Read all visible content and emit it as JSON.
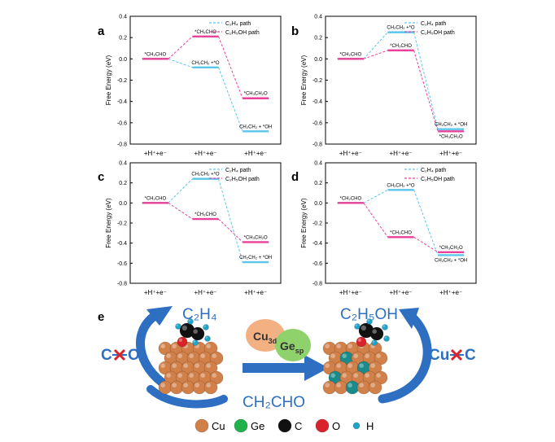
{
  "figure": {
    "panel_e_label": "e",
    "colors": {
      "c2h4_path": "#5bc5ec",
      "c2h5oh_path": "#e8429a",
      "arrow_blue": "#2e6fc1",
      "cross_red": "#d8232a",
      "cu": "#d2804a",
      "ge": "#21b24b",
      "c": "#111111",
      "o": "#d8232a",
      "h": "#1fa3c9"
    },
    "panel_e": {
      "left_product": "C₂H₄",
      "right_product": "C₂H₅OH",
      "intermediate": "CH₂CHO",
      "left_bond_a": "C",
      "left_bond_b": "O",
      "right_bond_a": "Cu",
      "right_bond_b": "C",
      "cu_orbital_main": "Cu",
      "cu_orbital_sub": "3d",
      "ge_orbital_main": "Ge",
      "ge_orbital_sub": "sp",
      "legend": [
        {
          "label": "Cu",
          "color": "#d2804a"
        },
        {
          "label": "Ge",
          "color": "#21b24b"
        },
        {
          "label": "C",
          "color": "#111111"
        },
        {
          "label": "O",
          "color": "#d8232a"
        },
        {
          "label": "H",
          "color": "#1fa3c9"
        }
      ]
    }
  },
  "chart_data": [
    {
      "type": "line",
      "panel": "a",
      "ylabel": "Free Energy (eV)",
      "ylim": [
        -0.8,
        0.4
      ],
      "yticks": [
        "0.4",
        "0.2",
        "0.0",
        "-0.2",
        "-0.4",
        "-0.6",
        "-0.8"
      ],
      "categories": [
        "+H⁺+e⁻",
        "+H⁺+e⁻",
        "+H⁺+e⁻"
      ],
      "legend": [
        "C₂H₄ path",
        "C₂H₅OH path"
      ],
      "series": [
        {
          "name": "C₂H₄ path",
          "values": [
            0.0,
            -0.08,
            -0.68
          ],
          "labels": [
            "*CH₂CHO",
            "CH₂CH₂ +*O",
            "CH₂CH₂ + *OH"
          ]
        },
        {
          "name": "C₂H₅OH path",
          "values": [
            0.0,
            0.21,
            -0.37
          ],
          "labels": [
            "*CH₂CHO",
            "*CH₃CHO",
            "*CH₃CH₂O"
          ]
        }
      ]
    },
    {
      "type": "line",
      "panel": "b",
      "ylabel": "Free Energy (eV)",
      "ylim": [
        -0.8,
        0.4
      ],
      "yticks": [
        "0.4",
        "0.2",
        "0.0",
        "-0.2",
        "-0.4",
        "-0.6",
        "-0.8"
      ],
      "categories": [
        "+H⁺+e⁻",
        "+H⁺+e⁻",
        "+H⁺+e⁻"
      ],
      "legend": [
        "C₂H₄ path",
        "C₂H₅OH path"
      ],
      "series": [
        {
          "name": "C₂H₄ path",
          "values": [
            0.0,
            0.25,
            -0.66
          ],
          "labels": [
            "*CH₂CHO",
            "CH₂CH₂ +*O",
            "CH₂CH₂ + *OH"
          ]
        },
        {
          "name": "C₂H₅OH path",
          "values": [
            0.0,
            0.08,
            -0.68
          ],
          "labels": [
            "*CH₂CHO",
            "*CH₃CHO",
            "*CH₃CH₂O"
          ]
        }
      ]
    },
    {
      "type": "line",
      "panel": "c",
      "ylabel": "Free Energy (eV)",
      "ylim": [
        -0.8,
        0.4
      ],
      "yticks": [
        "0.4",
        "0.2",
        "0.0",
        "-0.2",
        "-0.4",
        "-0.6",
        "-0.8"
      ],
      "categories": [
        "+H⁺+e⁻",
        "+H⁺+e⁻",
        "+H⁺+e⁻"
      ],
      "legend": [
        "C₂H₄ path",
        "C₂H₅OH path"
      ],
      "series": [
        {
          "name": "C₂H₄ path",
          "values": [
            0.0,
            0.24,
            -0.59
          ],
          "labels": [
            "*CH₂CHO",
            "CH₂CH₂ +*O",
            "CH₂CH₂ + *OH"
          ]
        },
        {
          "name": "C₂H₅OH path",
          "values": [
            0.0,
            -0.16,
            -0.39
          ],
          "labels": [
            "*CH₂CHO",
            "*CH₃CHO",
            "*CH₃CH₂O"
          ]
        }
      ]
    },
    {
      "type": "line",
      "panel": "d",
      "ylabel": "Free Energy (eV)",
      "ylim": [
        -0.8,
        0.4
      ],
      "yticks": [
        "0.4",
        "0.2",
        "0.0",
        "-0.2",
        "-0.4",
        "-0.6",
        "-0.8"
      ],
      "categories": [
        "+H⁺+e⁻",
        "+H⁺+e⁻",
        "+H⁺+e⁻"
      ],
      "legend": [
        "C₂H₄ path",
        "C₂H₅OH path"
      ],
      "series": [
        {
          "name": "C₂H₄ path",
          "values": [
            0.0,
            0.13,
            -0.52
          ],
          "labels": [
            "*CH₂CHO",
            "CH₂CH₂ +*O",
            "CH₂CH₂ + *OH"
          ]
        },
        {
          "name": "C₂H₅OH path",
          "values": [
            0.0,
            -0.34,
            -0.49
          ],
          "labels": [
            "*CH₂CHO",
            "*CH₃CHO",
            "*CH₃CH₂O"
          ]
        }
      ]
    }
  ]
}
